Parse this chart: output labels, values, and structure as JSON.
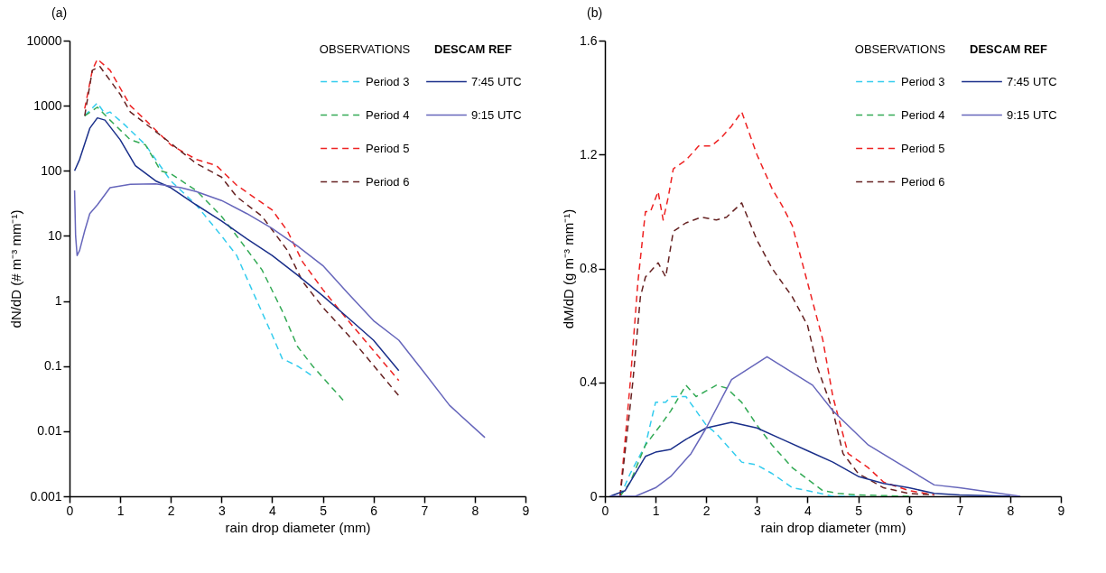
{
  "chart_data": [
    {
      "type": "line",
      "title": "(a)",
      "xlabel": "rain drop diameter (mm)",
      "ylabel": "dN/dD (# m⁻³ mm⁻¹)",
      "log": "y",
      "xlim": [
        0,
        9
      ],
      "xticks": [
        0,
        1,
        2,
        3,
        4,
        5,
        6,
        7,
        8,
        9
      ],
      "ylim": [
        0.001,
        10000
      ],
      "yticks": [
        0.001,
        0.01,
        0.1,
        1,
        10,
        100,
        1000,
        10000
      ],
      "legend": "top right",
      "legend_title": [
        "OBSERVATIONS",
        "DESCAM REF"
      ],
      "series": [
        {
          "name": "Period 3",
          "color": "#33ccee",
          "line_style": "dashed",
          "x": [
            0.3,
            0.55,
            0.7,
            0.8,
            1.1,
            1.5,
            2,
            2.5,
            3,
            3.3,
            3.7,
            4.0,
            4.2,
            4.5,
            4.8
          ],
          "values": [
            700,
            1100,
            750,
            800,
            500,
            250,
            70,
            30,
            10,
            5,
            1,
            0.3,
            0.13,
            0.1,
            0.07
          ]
        },
        {
          "name": "Period 4",
          "color": "#33aa55",
          "line_style": "dashed",
          "x": [
            0.3,
            0.55,
            0.8,
            1.2,
            1.5,
            1.8,
            2,
            2.5,
            3,
            3.3,
            3.8,
            4.2,
            4.5,
            4.8,
            5.4
          ],
          "values": [
            700,
            950,
            600,
            300,
            250,
            100,
            90,
            50,
            20,
            10,
            3,
            0.7,
            0.2,
            0.1,
            0.03
          ]
        },
        {
          "name": "Period 5",
          "color": "#ee2222",
          "line_style": "dashed",
          "x": [
            0.3,
            0.45,
            0.55,
            0.8,
            1.2,
            1.5,
            2,
            2.5,
            2.9,
            3.3,
            4.0,
            4.3,
            4.6,
            5.0,
            5.5,
            6.5
          ],
          "values": [
            900,
            3500,
            5200,
            3500,
            1000,
            600,
            250,
            150,
            120,
            60,
            25,
            12,
            4,
            1.5,
            0.5,
            0.06
          ]
        },
        {
          "name": "Period 6",
          "color": "#662222",
          "line_style": "dashed",
          "x": [
            0.3,
            0.45,
            0.6,
            1,
            1.2,
            1.8,
            2.5,
            3,
            3.3,
            3.8,
            4.3,
            4.6,
            5,
            5.5,
            6.5
          ],
          "values": [
            700,
            3500,
            4000,
            1500,
            800,
            350,
            130,
            80,
            40,
            20,
            6,
            2,
            0.8,
            0.3,
            0.035
          ]
        },
        {
          "name": "7:45 UTC",
          "color": "#1a2f8a",
          "line_style": "solid",
          "x": [
            0.1,
            0.2,
            0.4,
            0.55,
            0.7,
            1,
            1.3,
            1.7,
            2,
            2.5,
            3,
            3.5,
            4,
            4.5,
            5,
            5.5,
            6,
            6.5
          ],
          "values": [
            100,
            150,
            450,
            650,
            600,
            300,
            120,
            70,
            55,
            30,
            17,
            9,
            5,
            2.5,
            1.2,
            0.55,
            0.25,
            0.085
          ]
        },
        {
          "name": "9:15 UTC",
          "color": "#6666bb",
          "line_style": "solid",
          "x": [
            0.1,
            0.12,
            0.15,
            0.2,
            0.3,
            0.4,
            0.55,
            0.8,
            1.2,
            1.7,
            2.2,
            2.5,
            3,
            3.5,
            4,
            4.5,
            5,
            5.5,
            6,
            6.5,
            7,
            7.5,
            8.2
          ],
          "values": [
            50,
            10,
            5,
            6,
            12,
            22,
            30,
            55,
            62,
            63,
            55,
            48,
            35,
            22,
            13,
            7,
            3.5,
            1.3,
            0.5,
            0.25,
            0.08,
            0.025,
            0.008
          ]
        }
      ]
    },
    {
      "type": "line",
      "title": "(b)",
      "xlabel": "rain drop diameter (mm)",
      "ylabel": "dM/dD (g m⁻³ mm⁻¹)",
      "xlim": [
        0,
        9
      ],
      "xticks": [
        0,
        1,
        2,
        3,
        4,
        5,
        6,
        7,
        8,
        9
      ],
      "ylim": [
        0,
        1.6
      ],
      "yticks": [
        0,
        0.4,
        0.8,
        1.2,
        1.6
      ],
      "legend": "top right",
      "legend_title": [
        "OBSERVATIONS",
        "DESCAM REF"
      ],
      "series": [
        {
          "name": "Period 3",
          "color": "#33ccee",
          "line_style": "dashed",
          "x": [
            0.3,
            0.5,
            0.8,
            1.0,
            1.2,
            1.3,
            1.6,
            2.0,
            2.2,
            2.5,
            2.7,
            3.0,
            3.3,
            3.7,
            4.0,
            4.5,
            5.0
          ],
          "values": [
            0,
            0.08,
            0.18,
            0.33,
            0.33,
            0.35,
            0.35,
            0.25,
            0.22,
            0.16,
            0.12,
            0.11,
            0.08,
            0.03,
            0.02,
            0,
            0
          ]
        },
        {
          "name": "Period 4",
          "color": "#33aa55",
          "line_style": "dashed",
          "x": [
            0.3,
            0.5,
            0.8,
            1.1,
            1.3,
            1.4,
            1.6,
            1.8,
            2.0,
            2.2,
            2.4,
            2.7,
            3.0,
            3.3,
            3.7,
            4.0,
            4.3,
            4.6,
            5.0,
            6.0
          ],
          "values": [
            0,
            0.05,
            0.18,
            0.25,
            0.3,
            0.33,
            0.39,
            0.35,
            0.37,
            0.39,
            0.38,
            0.33,
            0.25,
            0.18,
            0.1,
            0.06,
            0.02,
            0.01,
            0.005,
            0
          ]
        },
        {
          "name": "Period 5",
          "color": "#ee2222",
          "line_style": "dashed",
          "x": [
            0.3,
            0.35,
            0.5,
            0.65,
            0.8,
            0.9,
            1.05,
            1.15,
            1.25,
            1.35,
            1.6,
            1.85,
            2.1,
            2.3,
            2.5,
            2.7,
            3.0,
            3.3,
            3.5,
            3.7,
            4.0,
            4.3,
            4.5,
            4.8,
            5.2,
            5.5,
            6.0,
            6.5
          ],
          "values": [
            0,
            0.1,
            0.4,
            0.75,
            1.0,
            1.0,
            1.07,
            0.97,
            1.05,
            1.15,
            1.18,
            1.23,
            1.23,
            1.26,
            1.3,
            1.35,
            1.2,
            1.08,
            1.02,
            0.95,
            0.75,
            0.55,
            0.35,
            0.15,
            0.1,
            0.05,
            0.02,
            0.005
          ]
        },
        {
          "name": "Period 6",
          "color": "#662222",
          "line_style": "dashed",
          "x": [
            0.3,
            0.35,
            0.55,
            0.7,
            0.8,
            1.05,
            1.2,
            1.35,
            1.6,
            1.9,
            2.2,
            2.4,
            2.7,
            3.0,
            3.3,
            3.7,
            4.0,
            4.2,
            4.5,
            4.7,
            5.0,
            5.5,
            6.0,
            6.5
          ],
          "values": [
            0,
            0.08,
            0.4,
            0.7,
            0.77,
            0.82,
            0.77,
            0.93,
            0.96,
            0.98,
            0.97,
            0.98,
            1.03,
            0.9,
            0.8,
            0.7,
            0.6,
            0.45,
            0.3,
            0.15,
            0.08,
            0.03,
            0.01,
            0.005
          ]
        },
        {
          "name": "7:45 UTC",
          "color": "#1a2f8a",
          "line_style": "solid",
          "x": [
            0.1,
            0.4,
            0.8,
            1,
            1.3,
            1.6,
            2,
            2.5,
            3,
            3.5,
            4,
            4.5,
            5,
            5.5,
            6,
            6.5,
            7,
            8
          ],
          "values": [
            0,
            0.02,
            0.14,
            0.155,
            0.165,
            0.2,
            0.24,
            0.26,
            0.24,
            0.2,
            0.16,
            0.12,
            0.07,
            0.045,
            0.03,
            0.01,
            0.005,
            0
          ]
        },
        {
          "name": "9:15 UTC",
          "color": "#6666bb",
          "line_style": "solid",
          "x": [
            0.1,
            0.6,
            1,
            1.3,
            1.7,
            2,
            2.5,
            3.2,
            4.1,
            4.5,
            5.2,
            6.5,
            7,
            8.2
          ],
          "values": [
            0,
            0,
            0.03,
            0.07,
            0.15,
            0.24,
            0.41,
            0.49,
            0.39,
            0.3,
            0.18,
            0.04,
            0.03,
            0
          ]
        }
      ]
    }
  ]
}
